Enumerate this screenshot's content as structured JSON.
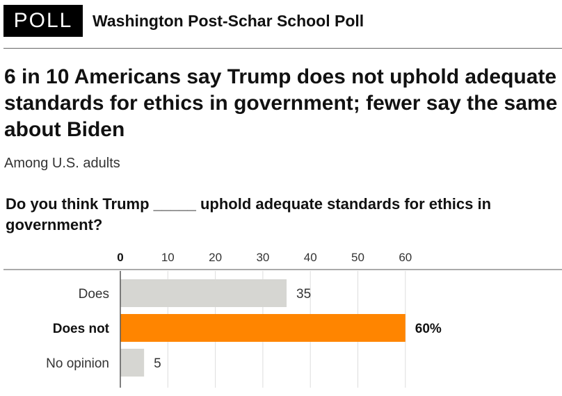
{
  "header": {
    "badge": "POLL",
    "source": "Washington Post-Schar School Poll"
  },
  "headline": "6 in 10 Americans say Trump does not uphold adequate standards for ethics in government; fewer say the same about Biden",
  "subhead": "Among U.S. adults",
  "question": "Do you think Trump _____ uphold adequate standards for ethics in government?",
  "chart_data": {
    "type": "bar",
    "orientation": "horizontal",
    "categories": [
      "Does",
      "Does not",
      "No opinion"
    ],
    "values": [
      35,
      60,
      5
    ],
    "value_labels": [
      "35",
      "60%",
      "5"
    ],
    "highlight": [
      false,
      true,
      false
    ],
    "ticks": [
      0,
      10,
      20,
      30,
      40,
      50,
      60
    ],
    "tick_labels": [
      "0",
      "10",
      "20",
      "30",
      "40",
      "50",
      "60"
    ],
    "xlim": [
      0,
      60
    ],
    "grid": true,
    "colors": {
      "bar": "#d6d6d2",
      "highlight": "#ff8500",
      "grid": "#dddddd",
      "axis": "#555555"
    }
  }
}
